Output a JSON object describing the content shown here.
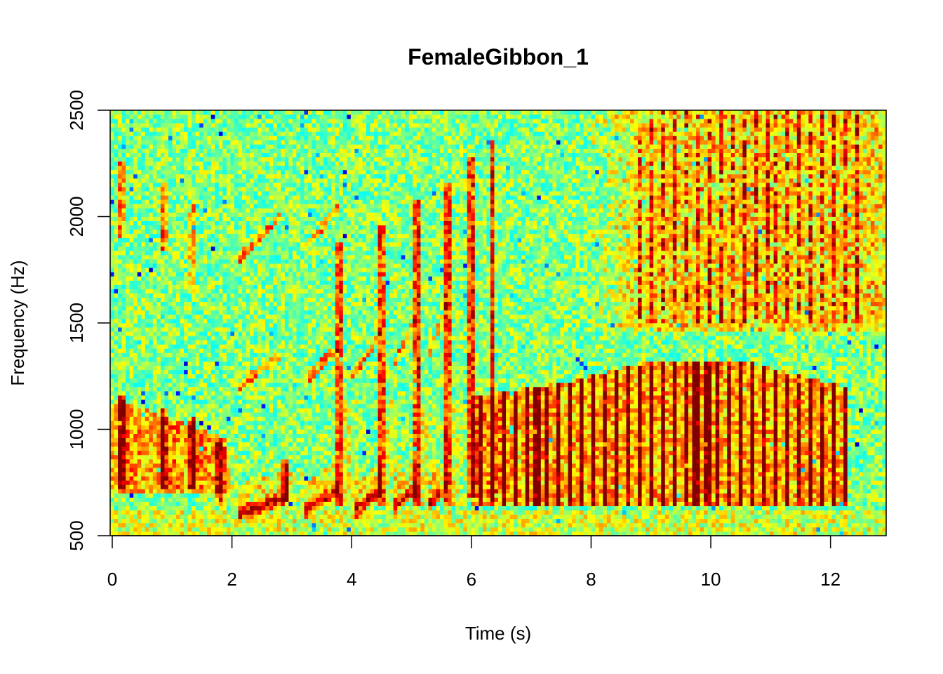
{
  "chart_data": {
    "type": "heatmap",
    "subtype": "spectrogram",
    "title": "FemaleGibbon_1",
    "xlabel": "Time (s)",
    "ylabel": "Frequency (Hz)",
    "xlim": [
      -0.035,
      12.93
    ],
    "ylim": [
      500,
      2500
    ],
    "xticks": [
      0,
      2,
      4,
      6,
      8,
      10,
      12
    ],
    "yticks": [
      500,
      1000,
      1500,
      2000,
      2500
    ],
    "colormap": [
      "#00008f",
      "#0000ff",
      "#00ffff",
      "#80ff80",
      "#ffff00",
      "#ff8000",
      "#ff0000",
      "#800000"
    ],
    "background_level": 0.5,
    "notes": [
      {
        "t": 0.15,
        "f_top": 1150,
        "f_bottom": 720,
        "amp": 0.45
      },
      {
        "t": 0.85,
        "f_top": 1100,
        "f_bottom": 720,
        "amp": 0.42
      },
      {
        "t": 1.35,
        "f_top": 1060,
        "f_bottom": 720,
        "amp": 0.4
      },
      {
        "t": 1.8,
        "f_top": 960,
        "f_bottom": 650,
        "amp": 0.35
      },
      {
        "t": 2.9,
        "f_top": 850,
        "f_bottom": 660,
        "amp": 0.4
      },
      {
        "t": 3.8,
        "f_top": 1880,
        "f_bottom": 650,
        "amp": 0.4
      },
      {
        "t": 4.5,
        "f_top": 1960,
        "f_bottom": 640,
        "amp": 0.4
      },
      {
        "t": 5.1,
        "f_top": 2080,
        "f_bottom": 650,
        "amp": 0.42
      },
      {
        "t": 5.6,
        "f_top": 2150,
        "f_bottom": 650,
        "amp": 0.42
      },
      {
        "t": 6.0,
        "f_top": 2280,
        "f_bottom": 680,
        "amp": 0.42
      },
      {
        "t": 6.35,
        "f_top": 2360,
        "f_bottom": 700,
        "amp": 0.35
      },
      {
        "t": 0.15,
        "f_top": 2250,
        "f_bottom": 1900,
        "amp": 0.3
      },
      {
        "t": 0.85,
        "f_top": 2150,
        "f_bottom": 1850,
        "amp": 0.28
      },
      {
        "t": 1.35,
        "f_top": 2050,
        "f_bottom": 1650,
        "amp": 0.22
      }
    ],
    "floor_segments": [
      {
        "t0": 2.1,
        "f0": 610,
        "t1": 2.95,
        "f1": 680,
        "amp": 0.45
      },
      {
        "t0": 3.2,
        "f0": 620,
        "t1": 3.8,
        "f1": 720,
        "amp": 0.45
      },
      {
        "t0": 4.05,
        "f0": 620,
        "t1": 4.5,
        "f1": 720,
        "amp": 0.42
      },
      {
        "t0": 4.7,
        "f0": 640,
        "t1": 5.1,
        "f1": 740,
        "amp": 0.4
      },
      {
        "t0": 5.3,
        "f0": 650,
        "t1": 5.6,
        "f1": 740,
        "amp": 0.38
      }
    ],
    "fm_lines": [
      {
        "t0": 2.1,
        "f0": 1800,
        "t1": 2.8,
        "f1": 2000,
        "amp": 0.25
      },
      {
        "t0": 3.2,
        "f0": 1850,
        "t1": 3.8,
        "f1": 2050,
        "amp": 0.22
      },
      {
        "t0": 2.1,
        "f0": 1200,
        "t1": 2.8,
        "f1": 1350,
        "amp": 0.22
      },
      {
        "t0": 3.3,
        "f0": 1250,
        "t1": 3.8,
        "f1": 1400,
        "amp": 0.22
      },
      {
        "t0": 4.0,
        "f0": 1250,
        "t1": 4.5,
        "f1": 1450,
        "amp": 0.22
      },
      {
        "t0": 4.7,
        "f0": 1300,
        "t1": 5.1,
        "f1": 1550,
        "amp": 0.22
      },
      {
        "t0": 5.3,
        "f0": 1350,
        "t1": 5.6,
        "f1": 1600,
        "amp": 0.2
      }
    ],
    "pulse_train": {
      "t_start": 6.3,
      "t_end": 12.3,
      "interval": 0.19,
      "f_bottom": 650,
      "f_top_profile": [
        [
          6.0,
          1150
        ],
        [
          7.5,
          1220
        ],
        [
          9.0,
          1320
        ],
        [
          10.5,
          1330
        ],
        [
          11.5,
          1250
        ],
        [
          12.3,
          1200
        ]
      ],
      "amp": 0.45
    },
    "upper_pulses": {
      "t_start": 8.8,
      "t_end": 12.6,
      "interval": 0.19,
      "f_bottom": 1500,
      "f_top": 2500,
      "amp": 0.25
    },
    "upper_region": {
      "t_start": 8.0,
      "f_bottom": 1450,
      "amp": 0.15
    }
  }
}
